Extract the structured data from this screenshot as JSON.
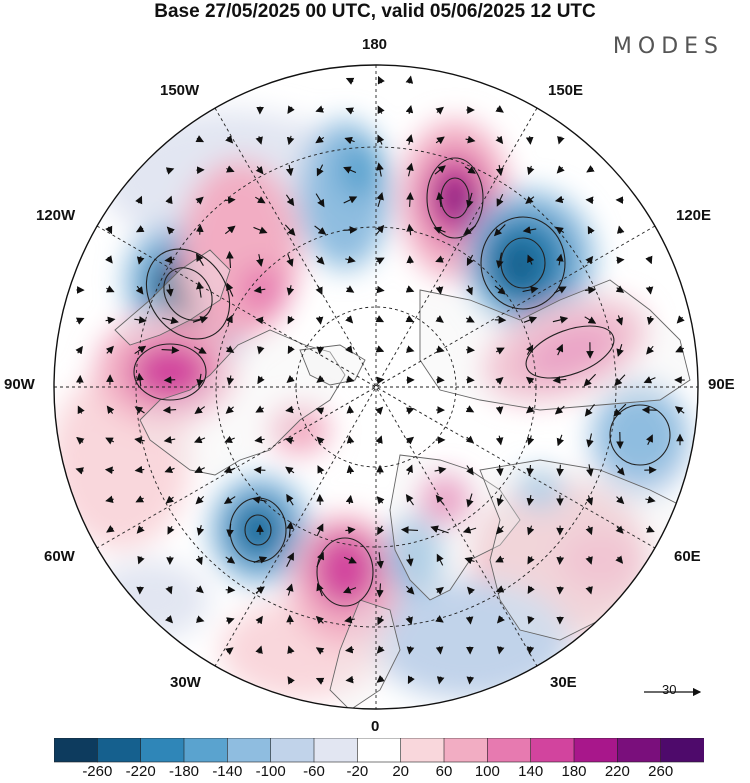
{
  "title": "Base 27/05/2025 00 UTC, valid 05/06/2025 12 UTC",
  "logo": "MODES",
  "longitude_labels": {
    "top": "180",
    "bottom": "0",
    "left": "90W",
    "right": "90E",
    "nw": "150W",
    "ne": "150E",
    "wnw": "120W",
    "ene": "120E",
    "wsw": "60W",
    "ese": "60E",
    "sw": "30W",
    "se": "30E"
  },
  "reference_vector": {
    "value": "30"
  },
  "colorbar": {
    "ticks": [
      "-260",
      "-220",
      "-180",
      "-140",
      "-100",
      "-60",
      "-20",
      "20",
      "60",
      "100",
      "140",
      "180",
      "220",
      "260"
    ],
    "colors": [
      "#0d3b5e",
      "#15608e",
      "#2f86b8",
      "#5aa3cf",
      "#8fbde0",
      "#c1d3ea",
      "#e2e6f2",
      "#ffffff",
      "#f9d7dc",
      "#f2adc3",
      "#e77ab0",
      "#d2449e",
      "#a8178b",
      "#7a0f7c",
      "#4e0a6b"
    ]
  },
  "anomalies": [
    {
      "sign": "neg",
      "intensity": 0.95,
      "name": "low-west-canada"
    },
    {
      "sign": "pos",
      "intensity": 0.7,
      "name": "high-hudson"
    },
    {
      "sign": "pos",
      "intensity": 0.55,
      "name": "high-alaska-west"
    },
    {
      "sign": "neg",
      "intensity": 0.55,
      "name": "low-bering"
    },
    {
      "sign": "pos",
      "intensity": 0.95,
      "name": "high-east-siberia"
    },
    {
      "sign": "neg",
      "intensity": 0.95,
      "name": "low-siberia"
    },
    {
      "sign": "pos",
      "intensity": 0.7,
      "name": "high-central-siberia"
    },
    {
      "sign": "neg",
      "intensity": 0.45,
      "name": "low-central-asia"
    },
    {
      "sign": "neg",
      "intensity": 0.9,
      "name": "low-north-atlantic"
    },
    {
      "sign": "pos",
      "intensity": 0.85,
      "name": "high-north-atlantic"
    },
    {
      "sign": "neg",
      "intensity": 0.55,
      "name": "low-scandinavia"
    },
    {
      "sign": "pos",
      "intensity": 0.5,
      "name": "high-barents"
    },
    {
      "sign": "pos",
      "intensity": 0.35,
      "name": "high-europe"
    },
    {
      "sign": "neg",
      "intensity": 0.35,
      "name": "low-mediterranean"
    }
  ]
}
